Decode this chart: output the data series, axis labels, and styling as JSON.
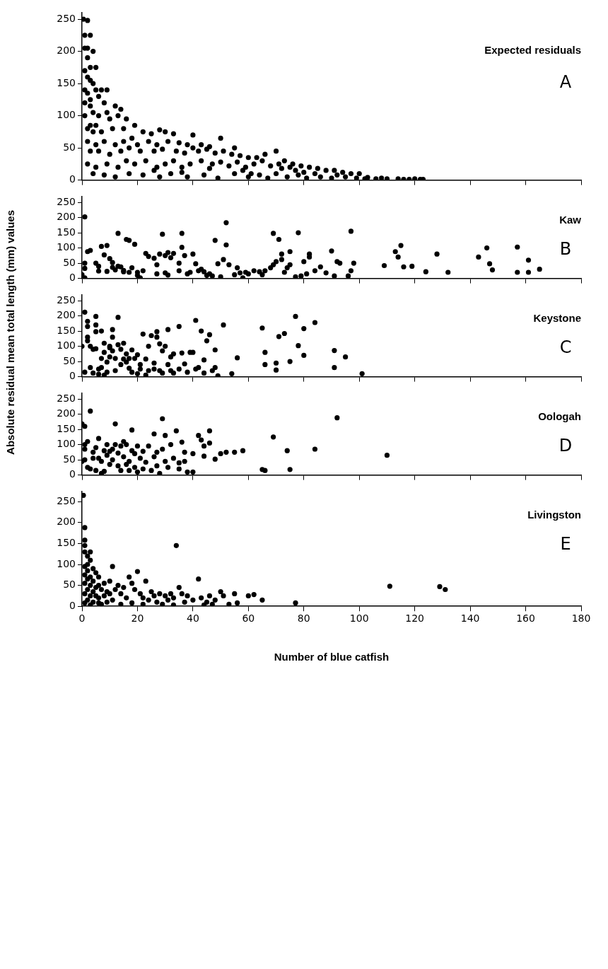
{
  "chart_data": [
    {
      "type": "scatter",
      "title": "Expected residuals",
      "annotations": [
        "A"
      ],
      "color": "#000000",
      "marker": "circle",
      "tick_labels": "y",
      "xlim": [
        0,
        180
      ],
      "xticks": [
        0,
        20,
        40,
        60,
        80,
        100,
        120,
        140,
        160,
        180
      ],
      "ylim": [
        0,
        260
      ],
      "yticks": [
        0,
        50,
        100,
        150,
        200,
        250
      ],
      "x": [
        0.5,
        2,
        1,
        3,
        2,
        1,
        4,
        2,
        3,
        5,
        1,
        2,
        4,
        3,
        1,
        2,
        5,
        6,
        3,
        7,
        9,
        1,
        3,
        4,
        8,
        9,
        12,
        14,
        6,
        1,
        3,
        5,
        10,
        13,
        16,
        2,
        4,
        7,
        11,
        15,
        19,
        22,
        25,
        28,
        30,
        33,
        2,
        5,
        8,
        12,
        15,
        18,
        20,
        24,
        27,
        31,
        35,
        38,
        40,
        43,
        46,
        3,
        6,
        10,
        14,
        17,
        21,
        26,
        29,
        34,
        37,
        42,
        45,
        48,
        51,
        54,
        57,
        60,
        63,
        66,
        2,
        5,
        9,
        13,
        16,
        19,
        23,
        27,
        30,
        33,
        36,
        39,
        43,
        47,
        50,
        53,
        56,
        59,
        62,
        65,
        68,
        71,
        73,
        76,
        79,
        82,
        85,
        88,
        91,
        94,
        97,
        100,
        4,
        8,
        12,
        17,
        22,
        28,
        32,
        38,
        44,
        49,
        55,
        60,
        64,
        67,
        70,
        74,
        78,
        81,
        86,
        90,
        95,
        99,
        103,
        106,
        110,
        114,
        118,
        122,
        123,
        102,
        108,
        116,
        120,
        84,
        77,
        72,
        58,
        46,
        36,
        26,
        40,
        50,
        55,
        70,
        75,
        92,
        80,
        61
      ],
      "values": [
        250,
        248,
        225,
        225,
        205,
        205,
        200,
        190,
        175,
        175,
        170,
        160,
        150,
        155,
        140,
        135,
        140,
        130,
        125,
        140,
        140,
        120,
        115,
        105,
        120,
        105,
        115,
        110,
        100,
        100,
        85,
        85,
        95,
        100,
        95,
        80,
        75,
        75,
        80,
        80,
        85,
        75,
        72,
        78,
        75,
        72,
        60,
        55,
        60,
        55,
        60,
        65,
        55,
        60,
        55,
        60,
        58,
        55,
        50,
        55,
        52,
        45,
        45,
        40,
        45,
        50,
        45,
        45,
        48,
        45,
        42,
        45,
        48,
        42,
        45,
        40,
        38,
        35,
        35,
        40,
        25,
        20,
        25,
        20,
        30,
        25,
        30,
        20,
        25,
        30,
        20,
        25,
        30,
        25,
        28,
        22,
        28,
        20,
        25,
        30,
        22,
        25,
        30,
        25,
        22,
        20,
        18,
        15,
        15,
        12,
        10,
        10,
        10,
        8,
        5,
        10,
        8,
        5,
        10,
        5,
        8,
        3,
        10,
        5,
        8,
        3,
        10,
        5,
        8,
        3,
        5,
        3,
        5,
        3,
        4,
        2,
        2,
        2,
        1,
        1,
        1,
        2,
        3,
        1,
        2,
        10,
        15,
        18,
        15,
        18,
        12,
        15,
        70,
        65,
        50,
        45,
        20,
        8,
        12,
        10
      ]
    },
    {
      "type": "scatter",
      "title": "Kaw",
      "annotations": [
        "B"
      ],
      "color": "#000000",
      "marker": "circle",
      "tick_labels": "y",
      "xlim": [
        0,
        180
      ],
      "xticks": [
        0,
        20,
        40,
        60,
        80,
        100,
        120,
        140,
        160,
        180
      ],
      "ylim": [
        0,
        270
      ],
      "yticks": [
        0,
        50,
        100,
        150,
        200,
        250
      ],
      "x": [
        0,
        1,
        1,
        1,
        2,
        3,
        1,
        5,
        6,
        6,
        7,
        8,
        9,
        9,
        10,
        11,
        11,
        12,
        13,
        13,
        14,
        15,
        15,
        16,
        17,
        18,
        17,
        19,
        20,
        20,
        21,
        22,
        23,
        24,
        26,
        27,
        27,
        28,
        29,
        30,
        30,
        31,
        31,
        32,
        33,
        35,
        35,
        36,
        36,
        37,
        38,
        39,
        40,
        41,
        42,
        43,
        44,
        45,
        46,
        47,
        48,
        49,
        50,
        51,
        52,
        52,
        53,
        55,
        56,
        57,
        58,
        59,
        60,
        62,
        64,
        65,
        66,
        68,
        69,
        69,
        70,
        71,
        72,
        72,
        73,
        74,
        75,
        75,
        77,
        78,
        79,
        80,
        81,
        82,
        82,
        84,
        86,
        88,
        90,
        91,
        92,
        93,
        96,
        97,
        97,
        98,
        109,
        113,
        114,
        115,
        116,
        119,
        124,
        128,
        132,
        143,
        146,
        147,
        148,
        157,
        157,
        161,
        161,
        165
      ],
      "values": [
        12,
        202,
        2,
        50,
        88,
        92,
        33,
        50,
        40,
        24,
        105,
        77,
        23,
        108,
        65,
        52,
        36,
        28,
        148,
        40,
        38,
        26,
        22,
        128,
        125,
        35,
        20,
        112,
        20,
        10,
        2,
        25,
        82,
        72,
        66,
        45,
        15,
        80,
        145,
        18,
        75,
        11,
        85,
        68,
        82,
        50,
        25,
        102,
        148,
        75,
        15,
        20,
        80,
        48,
        25,
        30,
        22,
        10,
        15,
        8,
        125,
        48,
        5,
        62,
        110,
        183,
        45,
        12,
        35,
        18,
        2,
        20,
        15,
        25,
        22,
        12,
        25,
        35,
        45,
        148,
        55,
        128,
        80,
        62,
        20,
        35,
        45,
        88,
        5,
        150,
        8,
        55,
        15,
        80,
        70,
        25,
        38,
        18,
        90,
        8,
        55,
        50,
        8,
        155,
        25,
        50,
        42,
        88,
        70,
        108,
        38,
        40,
        22,
        80,
        20,
        70,
        100,
        48,
        28,
        103,
        20,
        20,
        60,
        30
      ]
    },
    {
      "type": "scatter",
      "title": "Keystone",
      "annotations": [
        "C"
      ],
      "ylabel": "Absolute residual mean total length (mm) values",
      "color": "#000000",
      "marker": "circle",
      "tick_labels": "y",
      "xlim": [
        0,
        180
      ],
      "xticks": [
        0,
        20,
        40,
        60,
        80,
        100,
        120,
        140,
        160,
        180
      ],
      "ylim": [
        0,
        270
      ],
      "yticks": [
        0,
        50,
        100,
        150,
        200,
        250
      ],
      "x": [
        0,
        1,
        1,
        2,
        2,
        2,
        2,
        3,
        3,
        4,
        4,
        5,
        5,
        5,
        5,
        6,
        6,
        7,
        7,
        7,
        8,
        8,
        8,
        9,
        9,
        10,
        10,
        10,
        11,
        11,
        11,
        12,
        12,
        13,
        13,
        14,
        14,
        15,
        15,
        16,
        16,
        17,
        17,
        18,
        18,
        19,
        20,
        20,
        21,
        21,
        22,
        23,
        23,
        24,
        24,
        25,
        26,
        26,
        27,
        27,
        28,
        28,
        29,
        29,
        30,
        31,
        31,
        32,
        32,
        33,
        33,
        35,
        35,
        36,
        37,
        38,
        39,
        40,
        41,
        41,
        42,
        43,
        44,
        44,
        45,
        46,
        47,
        48,
        48,
        49,
        51,
        54,
        56,
        65,
        66,
        66,
        70,
        70,
        71,
        73,
        75,
        77,
        78,
        80,
        80,
        84,
        91,
        91,
        95,
        101
      ],
      "values": [
        100,
        212,
        15,
        182,
        165,
        130,
        118,
        100,
        30,
        12,
        90,
        198,
        170,
        148,
        92,
        25,
        8,
        60,
        150,
        30,
        5,
        110,
        80,
        48,
        15,
        100,
        65,
        95,
        130,
        155,
        85,
        60,
        20,
        195,
        105,
        40,
        90,
        58,
        110,
        75,
        48,
        60,
        28,
        88,
        15,
        60,
        10,
        72,
        40,
        25,
        140,
        5,
        58,
        20,
        100,
        135,
        45,
        25,
        148,
        130,
        108,
        20,
        85,
        12,
        100,
        40,
        155,
        65,
        20,
        75,
        12,
        25,
        165,
        78,
        42,
        15,
        80,
        80,
        185,
        25,
        30,
        150,
        55,
        12,
        118,
        138,
        20,
        30,
        88,
        3,
        170,
        10,
        62,
        160,
        80,
        40,
        22,
        45,
        132,
        142,
        50,
        198,
        102,
        158,
        70,
        178,
        30,
        86,
        65,
        10
      ]
    },
    {
      "type": "scatter",
      "title": "Oologah",
      "annotations": [
        "D"
      ],
      "color": "#000000",
      "marker": "circle",
      "tick_labels": "y",
      "xlim": [
        0,
        180
      ],
      "xticks": [
        0,
        20,
        40,
        60,
        80,
        100,
        120,
        140,
        160,
        180
      ],
      "ylim": [
        0,
        270
      ],
      "yticks": [
        0,
        50,
        100,
        150,
        200,
        250
      ],
      "x": [
        0,
        1,
        1,
        1,
        0,
        1,
        2,
        2,
        3,
        3,
        4,
        4,
        5,
        5,
        6,
        6,
        7,
        7,
        8,
        8,
        9,
        9,
        10,
        10,
        11,
        11,
        12,
        12,
        13,
        13,
        14,
        14,
        15,
        15,
        16,
        16,
        17,
        17,
        18,
        18,
        19,
        19,
        20,
        20,
        21,
        22,
        22,
        23,
        24,
        25,
        26,
        26,
        27,
        27,
        28,
        29,
        29,
        30,
        30,
        31,
        32,
        33,
        34,
        35,
        35,
        36,
        37,
        37,
        38,
        40,
        40,
        42,
        43,
        44,
        44,
        46,
        46,
        48,
        50,
        52,
        55,
        58,
        65,
        66,
        69,
        74,
        75,
        84,
        92,
        110
      ],
      "values": [
        168,
        160,
        85,
        50,
        45,
        100,
        110,
        25,
        210,
        20,
        75,
        55,
        90,
        15,
        120,
        55,
        5,
        45,
        80,
        12,
        65,
        100,
        78,
        35,
        50,
        85,
        168,
        100,
        30,
        72,
        95,
        15,
        60,
        110,
        100,
        35,
        45,
        15,
        148,
        80,
        70,
        25,
        95,
        10,
        55,
        78,
        20,
        42,
        95,
        15,
        135,
        60,
        75,
        30,
        5,
        185,
        85,
        130,
        45,
        25,
        100,
        55,
        145,
        20,
        40,
        108,
        75,
        45,
        10,
        10,
        70,
        130,
        115,
        95,
        62,
        145,
        105,
        52,
        70,
        75,
        75,
        80,
        18,
        15,
        125,
        80,
        18,
        85,
        188,
        65
      ]
    },
    {
      "type": "scatter",
      "title": "Livingston",
      "annotations": [
        "E"
      ],
      "xlabel": "Number of blue catfish",
      "color": "#000000",
      "marker": "circle",
      "xlim": [
        0,
        180
      ],
      "xticks": [
        0,
        20,
        40,
        60,
        80,
        100,
        120,
        140,
        160,
        180
      ],
      "ylim": [
        0,
        275
      ],
      "yticks": [
        0,
        50,
        100,
        150,
        200,
        250
      ],
      "x": [
        0.5,
        1,
        1,
        1,
        1,
        2,
        2,
        3,
        3,
        1,
        2,
        1,
        3,
        4,
        5,
        2,
        4,
        6,
        6,
        1,
        3,
        5,
        2,
        4,
        7,
        8,
        9,
        1,
        3,
        5,
        6,
        8,
        10,
        2,
        4,
        6,
        1,
        3,
        7,
        9,
        11,
        12,
        10,
        11,
        13,
        14,
        15,
        16,
        17,
        18,
        19,
        20,
        21,
        22,
        23,
        24,
        25,
        26,
        27,
        28,
        29,
        30,
        31,
        32,
        33,
        34,
        35,
        36,
        37,
        38,
        40,
        42,
        43,
        45,
        46,
        47,
        48,
        50,
        51,
        55,
        56,
        60,
        62,
        65,
        77,
        111,
        129,
        131,
        14,
        18,
        22,
        33,
        44,
        53
      ],
      "values": [
        265,
        188,
        158,
        145,
        130,
        120,
        100,
        130,
        110,
        95,
        85,
        75,
        70,
        90,
        80,
        65,
        60,
        70,
        50,
        55,
        50,
        45,
        40,
        35,
        40,
        55,
        35,
        30,
        25,
        25,
        20,
        25,
        30,
        15,
        10,
        8,
        8,
        3,
        5,
        10,
        15,
        40,
        60,
        95,
        50,
        30,
        45,
        20,
        70,
        55,
        40,
        83,
        30,
        20,
        60,
        15,
        35,
        25,
        10,
        30,
        5,
        25,
        15,
        30,
        20,
        145,
        45,
        30,
        10,
        25,
        15,
        65,
        20,
        10,
        25,
        5,
        15,
        35,
        25,
        30,
        8,
        25,
        28,
        15,
        8,
        48,
        47,
        40,
        5,
        8,
        5,
        3,
        3,
        5
      ]
    }
  ]
}
